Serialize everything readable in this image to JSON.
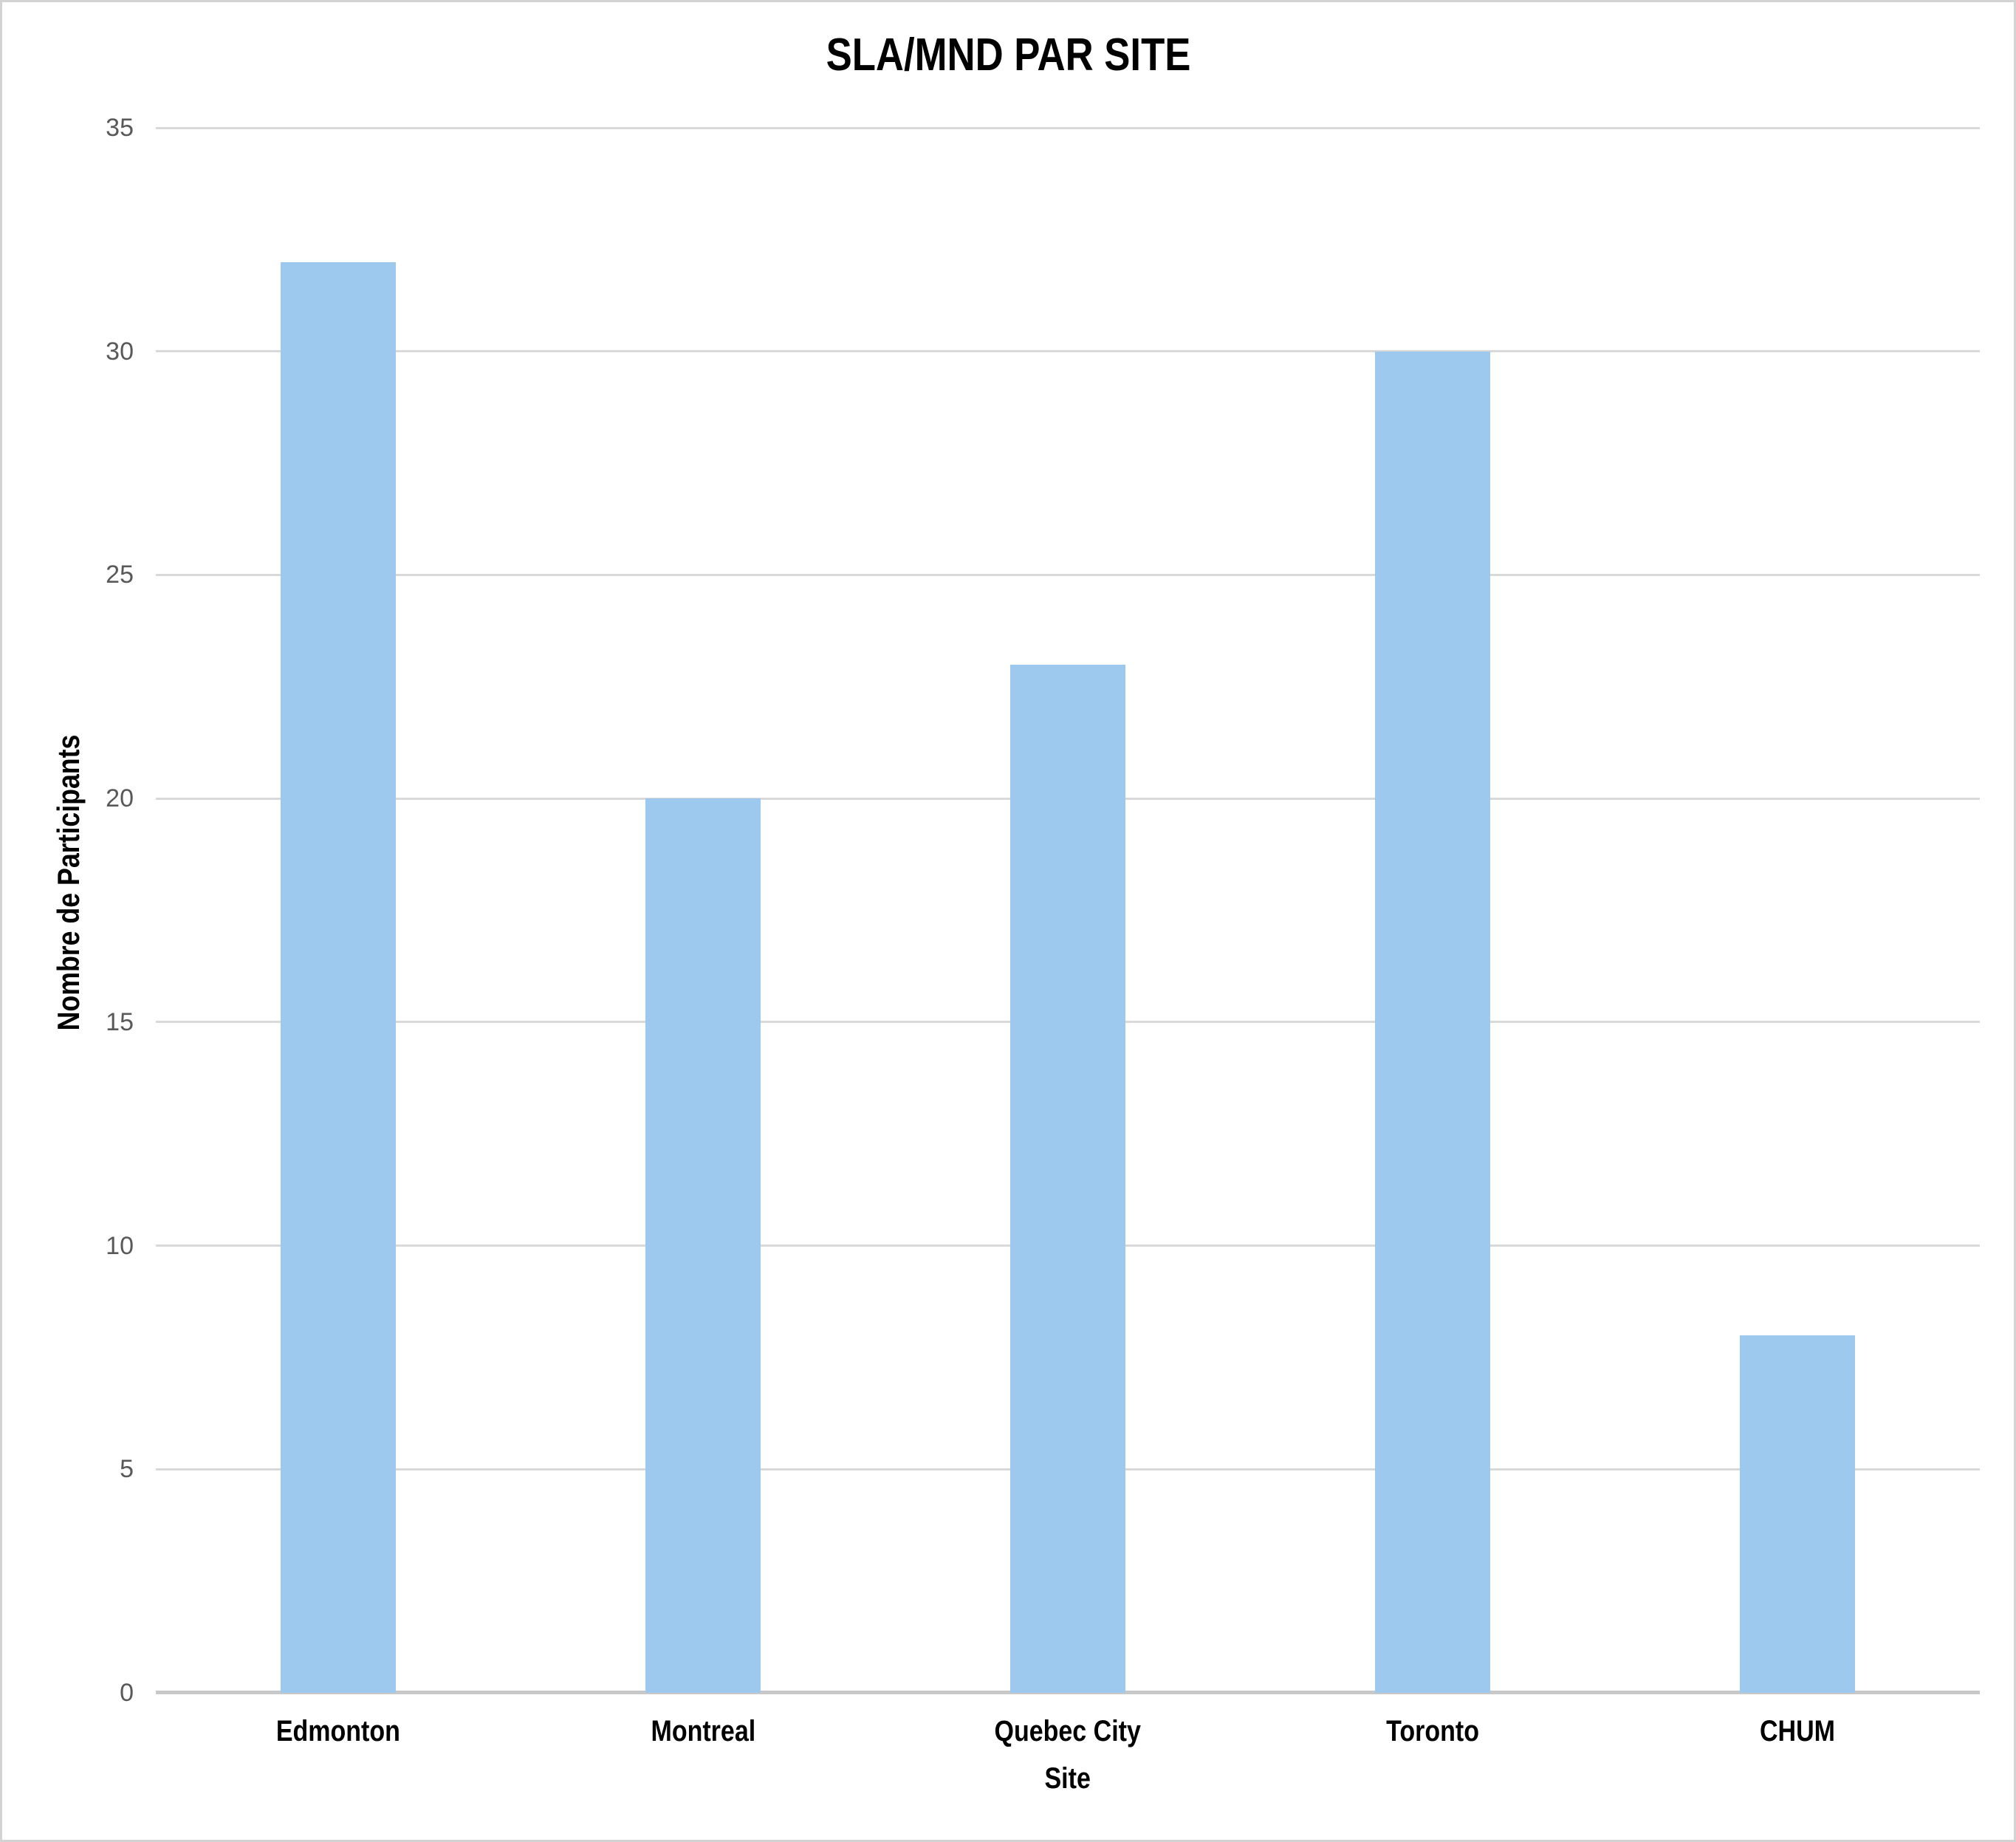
{
  "chart_data": {
    "type": "bar",
    "title": "SLA/MND PAR SITE",
    "xlabel": "Site",
    "ylabel": "Nombre de Participants",
    "categories": [
      "Edmonton",
      "Montreal",
      "Quebec City",
      "Toronto",
      "CHUM"
    ],
    "values": [
      32,
      20,
      23,
      30,
      8
    ],
    "ylim": [
      0,
      35
    ],
    "yticks": [
      0,
      5,
      10,
      15,
      20,
      25,
      30,
      35
    ],
    "grid": "horizontal",
    "legend_position": "none",
    "colors": {
      "bar": "#9DC9EE",
      "gridline": "#D9D9D9",
      "axis_line": "#C8C8C8",
      "tick_label": "#595959",
      "text": "#000000",
      "background": "#FFFFFF",
      "frame_border": "#D3D3D3"
    }
  }
}
